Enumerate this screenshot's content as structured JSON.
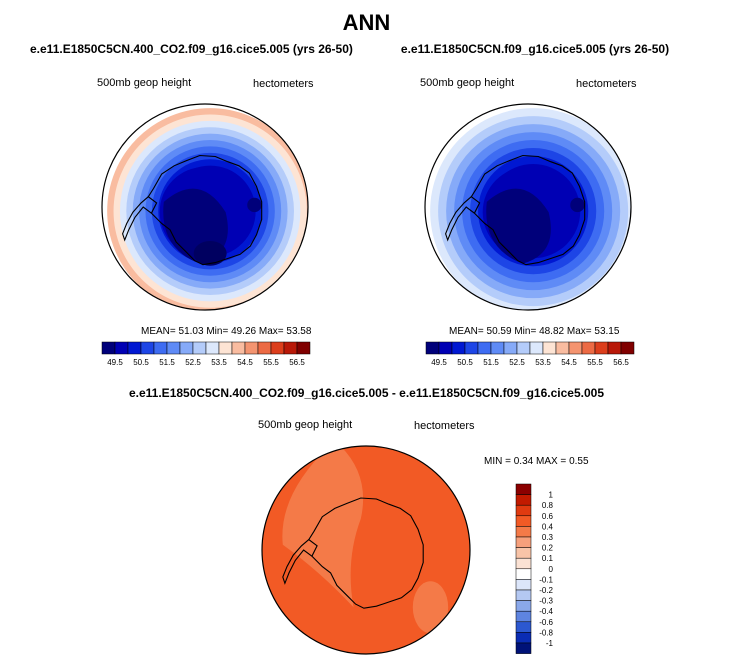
{
  "page": {
    "title": "ANN"
  },
  "panels": [
    {
      "case_title": "e.e11.E1850C5CN.400_CO2.f09_g16.cice5.005 (yrs 26-50)",
      "left_label": "500mb geop height",
      "right_label": "hectometers",
      "stats": {
        "mean_label": "MEAN=",
        "mean": "51.03",
        "min_label": "Min=",
        "min": "49.26",
        "max_label": "Max=",
        "max": "53.58"
      }
    },
    {
      "case_title": "e.e11.E1850C5CN.f09_g16.cice5.005 (yrs 26-50)",
      "left_label": "500mb geop height",
      "right_label": "hectometers",
      "stats": {
        "mean_label": "MEAN=",
        "mean": "50.59",
        "min_label": "Min=",
        "min": "48.82",
        "max_label": "Max=",
        "max": "53.15"
      }
    },
    {
      "case_title": "e.e11.E1850C5CN.400_CO2.f09_g16.cice5.005 - e.e11.E1850C5CN.f09_g16.cice5.005",
      "left_label": "500mb geop height",
      "right_label": "hectometers",
      "stats": {
        "min_label": "MIN =",
        "min": "0.34",
        "max_label": "MAX =",
        "max": "0.55"
      }
    }
  ],
  "chart_data": [
    {
      "type": "heatmap",
      "projection": "south-polar-stereographic",
      "variable": "500mb geop height",
      "units": "hectometers",
      "mean": 51.03,
      "min": 49.26,
      "max": 53.58,
      "contour_levels": [
        49.5,
        50,
        50.5,
        51,
        51.5,
        52,
        52.5,
        53,
        53.5,
        54,
        54.5,
        55,
        55.5,
        56,
        56.5
      ],
      "colorbar": {
        "orientation": "horizontal",
        "tick_labels": [
          "49.5",
          "50.5",
          "51.5",
          "52.5",
          "53.5",
          "54.5",
          "55.5",
          "56.5"
        ],
        "colors": [
          "#00007a",
          "#0000b4",
          "#0018d2",
          "#1d45e6",
          "#3e6cf2",
          "#5f8bf6",
          "#86aaf8",
          "#b4ccfa",
          "#dce8fc",
          "#fde4d4",
          "#f9bca0",
          "#f49470",
          "#ec6a44",
          "#dc3e1c",
          "#b81808",
          "#800000"
        ]
      }
    },
    {
      "type": "heatmap",
      "projection": "south-polar-stereographic",
      "variable": "500mb geop height",
      "units": "hectometers",
      "mean": 50.59,
      "min": 48.82,
      "max": 53.15,
      "contour_levels": [
        49.5,
        50,
        50.5,
        51,
        51.5,
        52,
        52.5,
        53,
        53.5,
        54,
        54.5,
        55,
        55.5,
        56,
        56.5
      ],
      "colorbar": {
        "orientation": "horizontal",
        "tick_labels": [
          "49.5",
          "50.5",
          "51.5",
          "52.5",
          "53.5",
          "54.5",
          "55.5",
          "56.5"
        ],
        "colors": [
          "#00007a",
          "#0000b4",
          "#0018d2",
          "#1d45e6",
          "#3e6cf2",
          "#5f8bf6",
          "#86aaf8",
          "#b4ccfa",
          "#dce8fc",
          "#fde4d4",
          "#f9bca0",
          "#f49470",
          "#ec6a44",
          "#dc3e1c",
          "#b81808",
          "#800000"
        ]
      }
    },
    {
      "type": "heatmap",
      "projection": "south-polar-stereographic",
      "variable": "500mb geop height difference",
      "units": "hectometers",
      "min": 0.34,
      "max": 0.55,
      "contour_levels": [
        -1,
        -0.8,
        -0.6,
        -0.4,
        -0.3,
        -0.2,
        -0.1,
        0,
        0.1,
        0.2,
        0.3,
        0.4,
        0.6,
        0.8,
        1
      ],
      "colorbar": {
        "orientation": "vertical",
        "tick_labels": [
          "1",
          "0.8",
          "0.6",
          "0.4",
          "0.3",
          "0.2",
          "0.1",
          "0",
          "-0.1",
          "-0.2",
          "-0.3",
          "-0.4",
          "-0.6",
          "-0.8",
          "-1"
        ],
        "colors": [
          "#8b0000",
          "#c21a00",
          "#e03a10",
          "#f25a25",
          "#f47a48",
          "#f6a07c",
          "#f8c4a8",
          "#fbe2d4",
          "#ffffff",
          "#dce6fa",
          "#b4c8f2",
          "#8aa8ea",
          "#5e84e0",
          "#2c58d0",
          "#0a2cb4",
          "#001278"
        ]
      }
    }
  ]
}
